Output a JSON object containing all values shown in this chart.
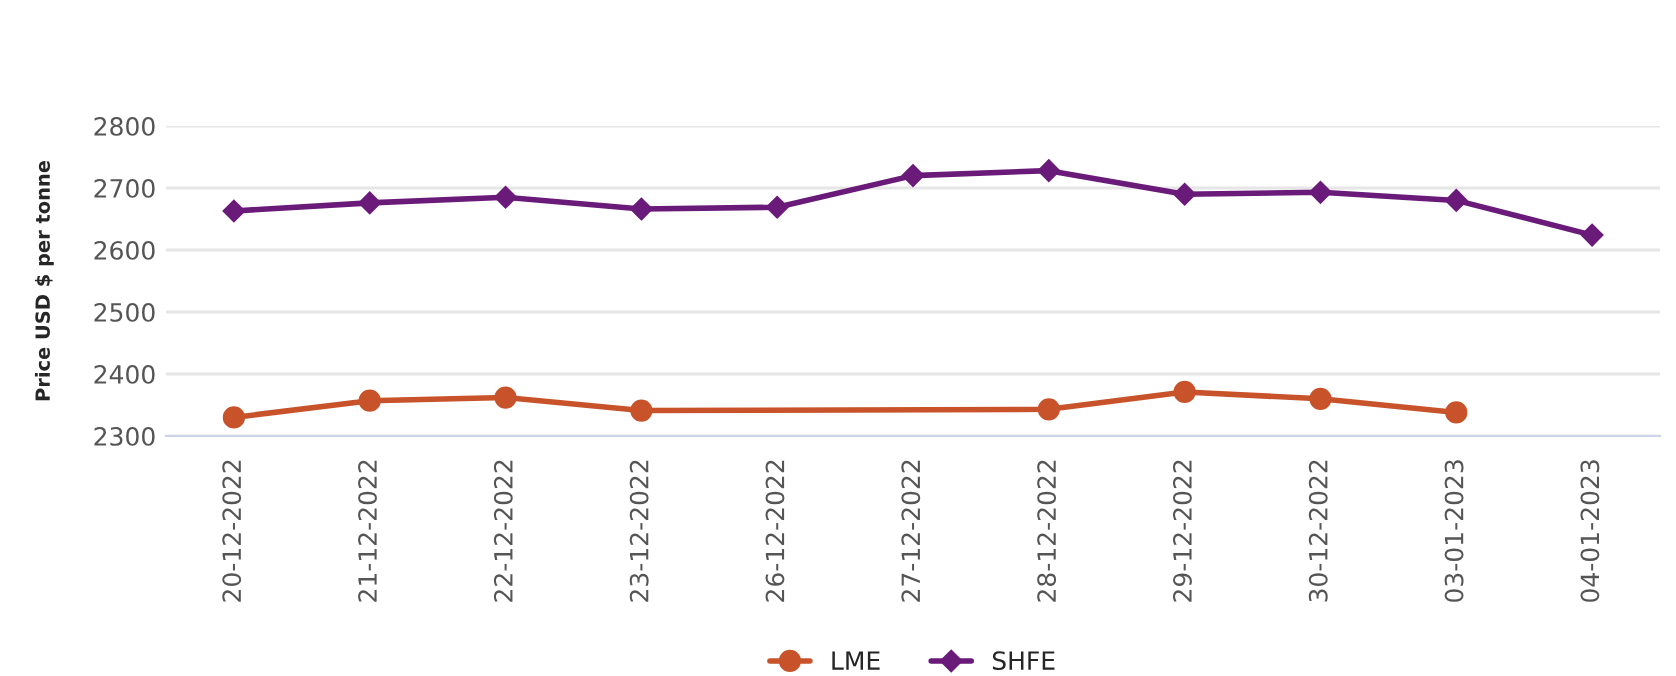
{
  "chart_data": {
    "type": "line",
    "ylabel": "Price USD $ per tonne",
    "categories": [
      "20-12-2022",
      "21-12-2022",
      "22-12-2022",
      "23-12-2022",
      "26-12-2022",
      "27-12-2022",
      "28-12-2022",
      "29-12-2022",
      "30-12-2022",
      "03-01-2023",
      "04-01-2023"
    ],
    "series": [
      {
        "name": "LME",
        "color": "#c8532b",
        "marker": "circle",
        "values": [
          2330,
          2357,
          2362,
          2341,
          null,
          null,
          2343,
          2371,
          2360,
          2338,
          null
        ]
      },
      {
        "name": "SHFE",
        "color": "#6a1b7a",
        "marker": "diamond",
        "values": [
          2663,
          2676,
          2685,
          2666,
          2669,
          2720,
          2728,
          2690,
          2693,
          2680,
          2624
        ]
      }
    ],
    "ylim": [
      2300,
      2800
    ],
    "yticks": [
      2300,
      2400,
      2500,
      2600,
      2700,
      2800
    ],
    "grid": "y",
    "legend": "bottom"
  }
}
